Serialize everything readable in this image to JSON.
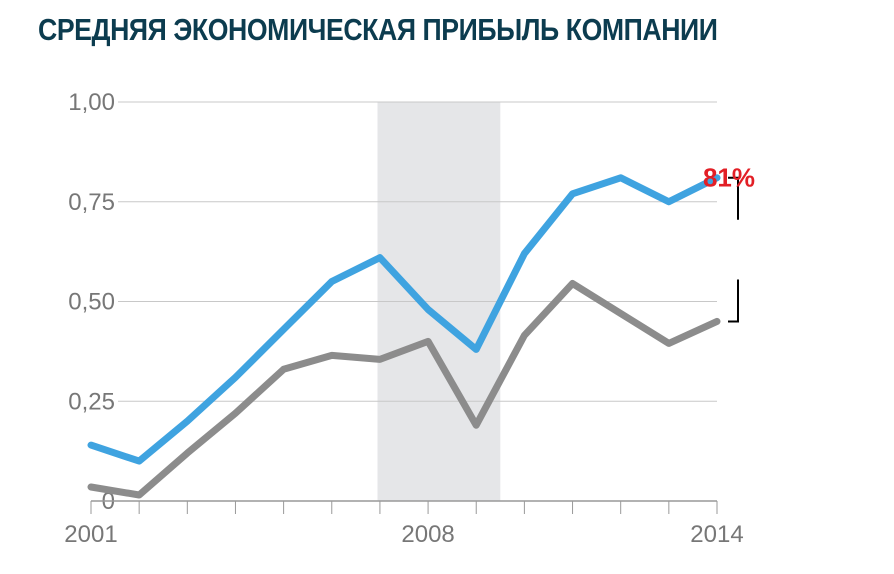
{
  "title": "СРЕДНЯЯ ЭКОНОМИЧЕСКАЯ ПРИБЫЛЬ КОМПАНИИ",
  "colors": {
    "title": "#0c3c4f",
    "series_top": "#3fa3e0",
    "series_bottom": "#8c8c8c",
    "annotation": "#e21f26",
    "shade": "#e5e6e8",
    "grid": "#c8c8c8",
    "axis_text": "#777777",
    "bracket": "#000000"
  },
  "chart_data": {
    "type": "line",
    "x": [
      2001,
      2002,
      2003,
      2004,
      2005,
      2006,
      2007,
      2008,
      2009,
      2010,
      2011,
      2012,
      2013,
      2014
    ],
    "series": [
      {
        "values": [
          0.14,
          0.1,
          0.2,
          0.31,
          0.43,
          0.55,
          0.61,
          0.48,
          0.38,
          0.62,
          0.77,
          0.81,
          0.75,
          0.81
        ]
      },
      {
        "values": [
          0.035,
          0.015,
          0.12,
          0.22,
          0.33,
          0.365,
          0.355,
          0.4,
          0.19,
          0.415,
          0.545,
          0.47,
          0.395,
          0.45
        ]
      }
    ],
    "xlim": [
      2001,
      2014
    ],
    "ylim": [
      0,
      1
    ],
    "y_ticks": [
      0,
      0.25,
      0.5,
      0.75,
      1
    ],
    "y_tick_labels": [
      "0",
      "0,25",
      "0,50",
      "0,75",
      "1,00"
    ],
    "x_tick_labels": [
      {
        "value": 2001,
        "label": "2001"
      },
      {
        "value": 2008,
        "label": "2008"
      },
      {
        "value": 2014,
        "label": "2014"
      }
    ],
    "grid": true,
    "shaded_region": [
      2006.95,
      2009.5
    ],
    "annotation": {
      "label": "81%",
      "x": 2014,
      "y_from": 0.45,
      "y_to": 0.81
    },
    "xlabel": "",
    "ylabel": ""
  }
}
